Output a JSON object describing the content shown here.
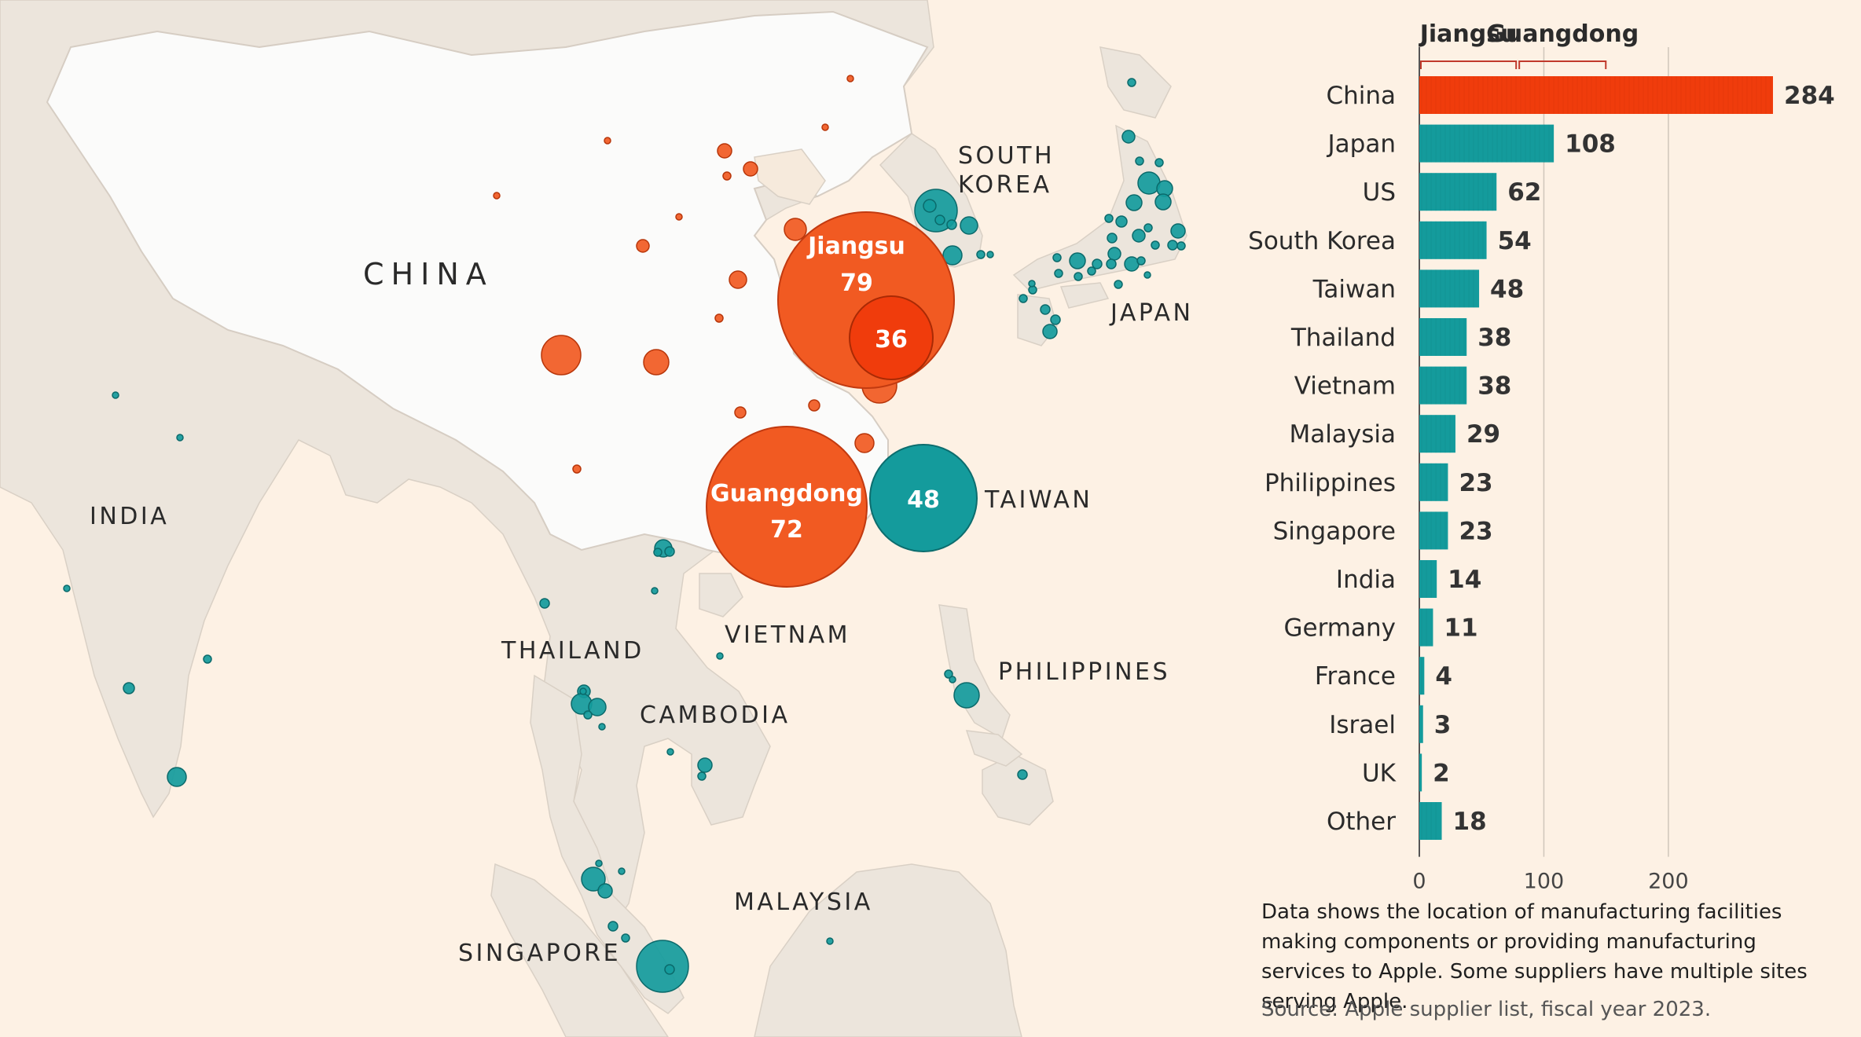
{
  "map": {
    "country_labels": [
      {
        "id": "china",
        "text": "CHINA",
        "big": true
      },
      {
        "id": "south-korea-1",
        "text": "SOUTH"
      },
      {
        "id": "south-korea-2",
        "text": "KOREA"
      },
      {
        "id": "japan",
        "text": "JAPAN"
      },
      {
        "id": "taiwan",
        "text": "TAIWAN"
      },
      {
        "id": "india",
        "text": "INDIA"
      },
      {
        "id": "thailand",
        "text": "THAILAND"
      },
      {
        "id": "vietnam",
        "text": "VIETNAM"
      },
      {
        "id": "cambodia",
        "text": "CAMBODIA"
      },
      {
        "id": "philippines",
        "text": "PHILIPPINES"
      },
      {
        "id": "malaysia",
        "text": "MALAYSIA"
      },
      {
        "id": "singapore",
        "text": "SINGAPORE"
      }
    ],
    "labelled_bubbles": [
      {
        "id": "jiangsu",
        "name": "Jiangsu",
        "value": "79",
        "color": "#f15a22"
      },
      {
        "id": "shanghai",
        "value": "36",
        "color": "#f03c0c"
      },
      {
        "id": "guangdong",
        "name": "Guangdong",
        "value": "72",
        "color": "#f15a22"
      },
      {
        "id": "taiwan",
        "value": "48",
        "color": "#149b9c"
      }
    ],
    "colors": {
      "china_sites": "#f15a22",
      "other_sites": "#149b9c",
      "land": "#ece5dc",
      "china_land": "#fbfbfa",
      "sea": "#fdf1e4"
    }
  },
  "chart_data": {
    "type": "bar",
    "orientation": "horizontal",
    "categories": [
      "China",
      "Japan",
      "US",
      "South Korea",
      "Taiwan",
      "Thailand",
      "Vietnam",
      "Malaysia",
      "Philippines",
      "Singapore",
      "India",
      "Germany",
      "France",
      "Israel",
      "UK",
      "Other"
    ],
    "values": [
      284,
      108,
      62,
      54,
      48,
      38,
      38,
      29,
      23,
      23,
      14,
      11,
      4,
      3,
      2,
      18
    ],
    "value_labels": [
      "284",
      "108",
      "62",
      "54",
      "48",
      "38",
      "38",
      "29",
      "23",
      "23",
      "14",
      "11",
      "4",
      "3",
      "2",
      "18"
    ],
    "xlim": [
      0,
      284
    ],
    "x_ticks": [
      0,
      100,
      200
    ],
    "x_tick_labels": [
      "0",
      "100",
      "200"
    ],
    "gridlines": true,
    "colors": {
      "china": "#f03c0c",
      "other": "#149b9c"
    },
    "china_breakdown": [
      {
        "name": "Jiangsu",
        "value": 79
      },
      {
        "name": "Guangdong",
        "value": 72
      }
    ]
  },
  "note": "Data shows the location of manufacturing facilities making components or providing manufacturing services to Apple. Some suppliers have multiple sites serving Apple.",
  "source": "Source: Apple supplier list, fiscal year 2023."
}
